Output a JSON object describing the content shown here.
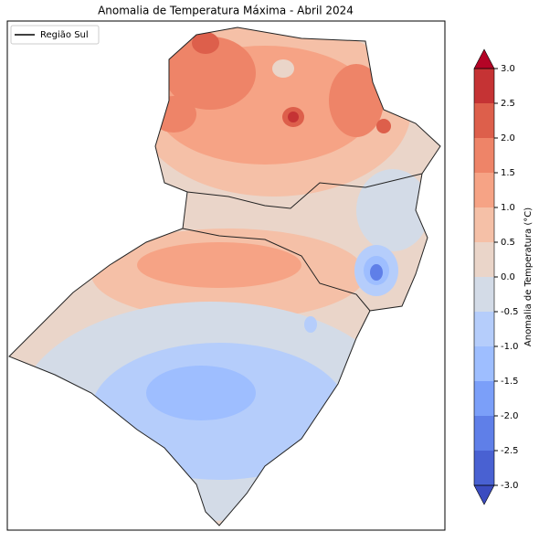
{
  "title": "Anomalia de Temperatura Máxima - Abril 2024",
  "legend": {
    "entries": [
      "Região Sul"
    ]
  },
  "colorbar": {
    "label": "Anomalia de Temperatura (°C)",
    "ticks": [
      {
        "value": -3,
        "label": "-3.0"
      },
      {
        "value": -2.5,
        "label": "-2.5"
      },
      {
        "value": -2,
        "label": "-2.0"
      },
      {
        "value": -1.5,
        "label": "-1.5"
      },
      {
        "value": -1,
        "label": "-1.0"
      },
      {
        "value": -0.5,
        "label": "-0.5"
      },
      {
        "value": 0,
        "label": "0.0"
      },
      {
        "value": 0.5,
        "label": "0.5"
      },
      {
        "value": 1,
        "label": "1.0"
      },
      {
        "value": 1.5,
        "label": "1.5"
      },
      {
        "value": 2,
        "label": "2.0"
      },
      {
        "value": 2.5,
        "label": "2.5"
      },
      {
        "value": 3,
        "label": "3.0"
      }
    ],
    "colors": [
      "#4961d2",
      "#5f7fe8",
      "#7b9ff9",
      "#9ebeff",
      "#b5cdfb",
      "#d3dbe7",
      "#ead5c9",
      "#f5c0a7",
      "#f6a385",
      "#ee8468",
      "#dd5f4b",
      "#c53334"
    ],
    "under_color": "#3b4cc0",
    "over_color": "#b40426"
  }
}
